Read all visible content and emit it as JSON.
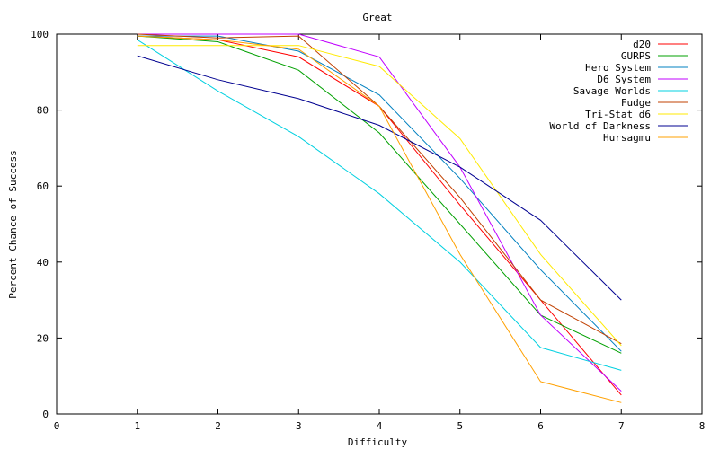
{
  "chart_data": {
    "type": "line",
    "title": "Great",
    "xlabel": "Difficulty",
    "ylabel": "Percent Chance of Success",
    "xlim": [
      0,
      8
    ],
    "ylim": [
      0,
      100
    ],
    "x_ticks": [
      "0",
      "1",
      "2",
      "3",
      "4",
      "5",
      "6",
      "7",
      "8"
    ],
    "y_ticks": [
      "0",
      "20",
      "40",
      "60",
      "80",
      "100"
    ],
    "legend_position": "top-right",
    "grid": false,
    "x": [
      1,
      2,
      3,
      4,
      5,
      6,
      7
    ],
    "series": [
      {
        "name": "d20",
        "color": "#ff0000",
        "values": [
          99.5,
          98.5,
          94,
          81,
          55,
          30,
          5
        ]
      },
      {
        "name": "GURPS",
        "color": "#00a000",
        "values": [
          99.5,
          98,
          90.5,
          74,
          50,
          26,
          16
        ]
      },
      {
        "name": "Hero System",
        "color": "#0080c0",
        "values": [
          99.5,
          99.5,
          95.5,
          84,
          62,
          38,
          16.5
        ]
      },
      {
        "name": "D6 System",
        "color": "#c000ff",
        "values": [
          100,
          100,
          100,
          94,
          65,
          26,
          6
        ]
      },
      {
        "name": "Savage Worlds",
        "color": "#00d0e0",
        "values": [
          98.5,
          85,
          73,
          58,
          40,
          17.5,
          11.5
        ]
      },
      {
        "name": "Fudge",
        "color": "#c04000",
        "values": [
          100,
          99,
          99.5,
          81,
          57,
          30,
          18.5
        ]
      },
      {
        "name": "Tri-Stat d6",
        "color": "#ffea00",
        "values": [
          97,
          97,
          97,
          91.5,
          72.5,
          42,
          18
        ]
      },
      {
        "name": "World of Darkness",
        "color": "#000090",
        "values": [
          94.3,
          88,
          83,
          76,
          65,
          51,
          30
        ]
      },
      {
        "name": "Hursagmu",
        "color": "#ffa000",
        "values": [
          99.5,
          98.5,
          96,
          81,
          42,
          8.5,
          3
        ]
      }
    ]
  }
}
